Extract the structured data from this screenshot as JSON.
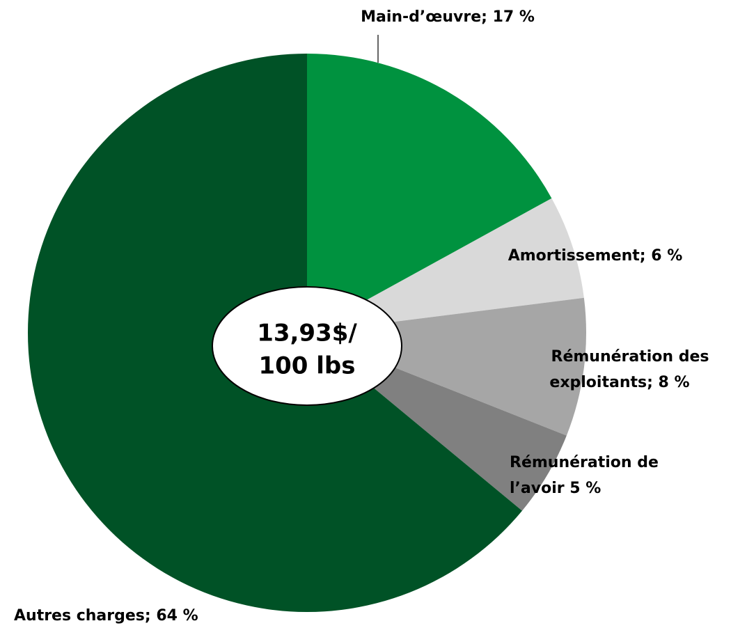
{
  "chart_data": {
    "type": "pie",
    "values": [
      17,
      6,
      8,
      5,
      64
    ],
    "value_labels": [
      [
        "Main-d’œuvre; 17 %"
      ],
      [
        "Amortissement; 6 %"
      ],
      [
        "Rémunération des",
        "exploitants; 8 %"
      ],
      [
        "Rémunération de",
        "l’avoir 5 %"
      ],
      [
        "Autres charges; 64 %"
      ]
    ],
    "colors": [
      "#00923f",
      "#d9d9d9",
      "#a6a6a6",
      "#808080",
      "#005226"
    ],
    "center_label": [
      "13,93$/",
      "100 lbs"
    ]
  }
}
